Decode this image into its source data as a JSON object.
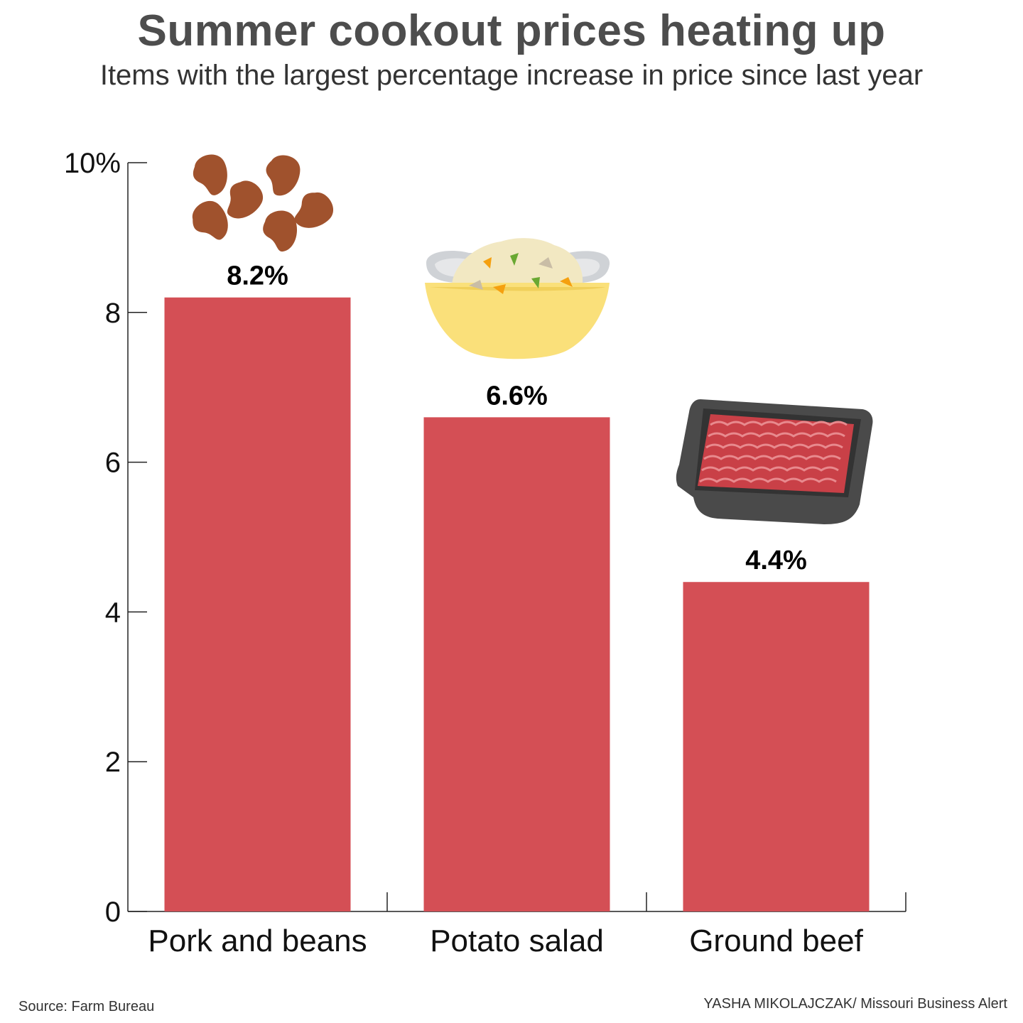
{
  "header": {
    "title": "Summer cookout prices heating up",
    "subtitle": "Items with the largest percentage increase in price since last year"
  },
  "chart_data": {
    "type": "bar",
    "categories": [
      "Pork and beans",
      "Potato salad",
      "Ground beef"
    ],
    "values": [
      8.2,
      6.6,
      4.4
    ],
    "value_labels": [
      "8.2%",
      "6.6%",
      "4.4%"
    ],
    "ylim": [
      0,
      10
    ],
    "yticks": [
      0,
      2,
      4,
      6,
      8,
      10
    ],
    "ytick_labels": [
      "0",
      "2",
      "4",
      "6",
      "8",
      "10%"
    ],
    "grid": false,
    "legend": "none",
    "bar_color": "#d44f55",
    "icons": [
      "beans-icon",
      "potato-salad-bowl-icon",
      "ground-beef-tray-icon"
    ]
  },
  "footer": {
    "source": "Source: Farm Bureau",
    "credit": "YASHA MIKOLAJCZAK/ Missouri Business Alert"
  }
}
